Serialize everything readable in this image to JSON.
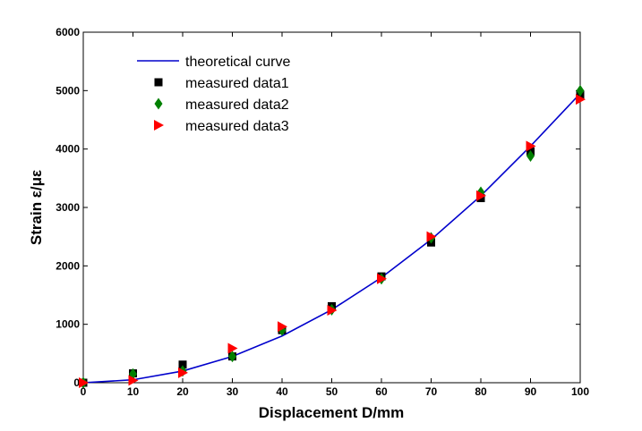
{
  "chart_data": {
    "type": "scatter",
    "xlabel": "Displacement D/mm",
    "ylabel": "Strain ε/με",
    "xlim": [
      0,
      100
    ],
    "ylim": [
      0,
      6000
    ],
    "xticks": [
      0,
      10,
      20,
      30,
      40,
      50,
      60,
      70,
      80,
      90,
      100
    ],
    "yticks": [
      0,
      1000,
      2000,
      3000,
      4000,
      5000,
      6000
    ],
    "grid": false,
    "legend_position": "top-left",
    "series": [
      {
        "name": "theoretical curve",
        "kind": "line",
        "color": "#0000cc",
        "x": [
          0,
          10,
          20,
          30,
          40,
          50,
          60,
          70,
          80,
          90,
          100
        ],
        "y": [
          0,
          50,
          200,
          450,
          800,
          1250,
          1800,
          2450,
          3200,
          4050,
          4950
        ]
      },
      {
        "name": "measured data1",
        "kind": "marker",
        "marker": "square",
        "color": "#000000",
        "x": [
          0,
          10,
          20,
          30,
          40,
          50,
          60,
          70,
          80,
          90,
          100
        ],
        "y": [
          0,
          160,
          310,
          450,
          900,
          1310,
          1820,
          2400,
          3160,
          3960,
          4930
        ]
      },
      {
        "name": "measured data2",
        "kind": "marker",
        "marker": "diamond",
        "color": "#008000",
        "x": [
          0,
          10,
          20,
          30,
          40,
          50,
          60,
          70,
          80,
          90,
          100
        ],
        "y": [
          0,
          150,
          200,
          450,
          900,
          1250,
          1780,
          2480,
          3260,
          3880,
          5000
        ]
      },
      {
        "name": "measured data3",
        "kind": "marker",
        "marker": "triangle-right",
        "color": "#ff0000",
        "x": [
          0,
          10,
          20,
          30,
          40,
          50,
          60,
          70,
          80,
          90,
          100
        ],
        "y": [
          0,
          40,
          170,
          590,
          960,
          1240,
          1780,
          2500,
          3200,
          4050,
          4850
        ]
      }
    ]
  }
}
